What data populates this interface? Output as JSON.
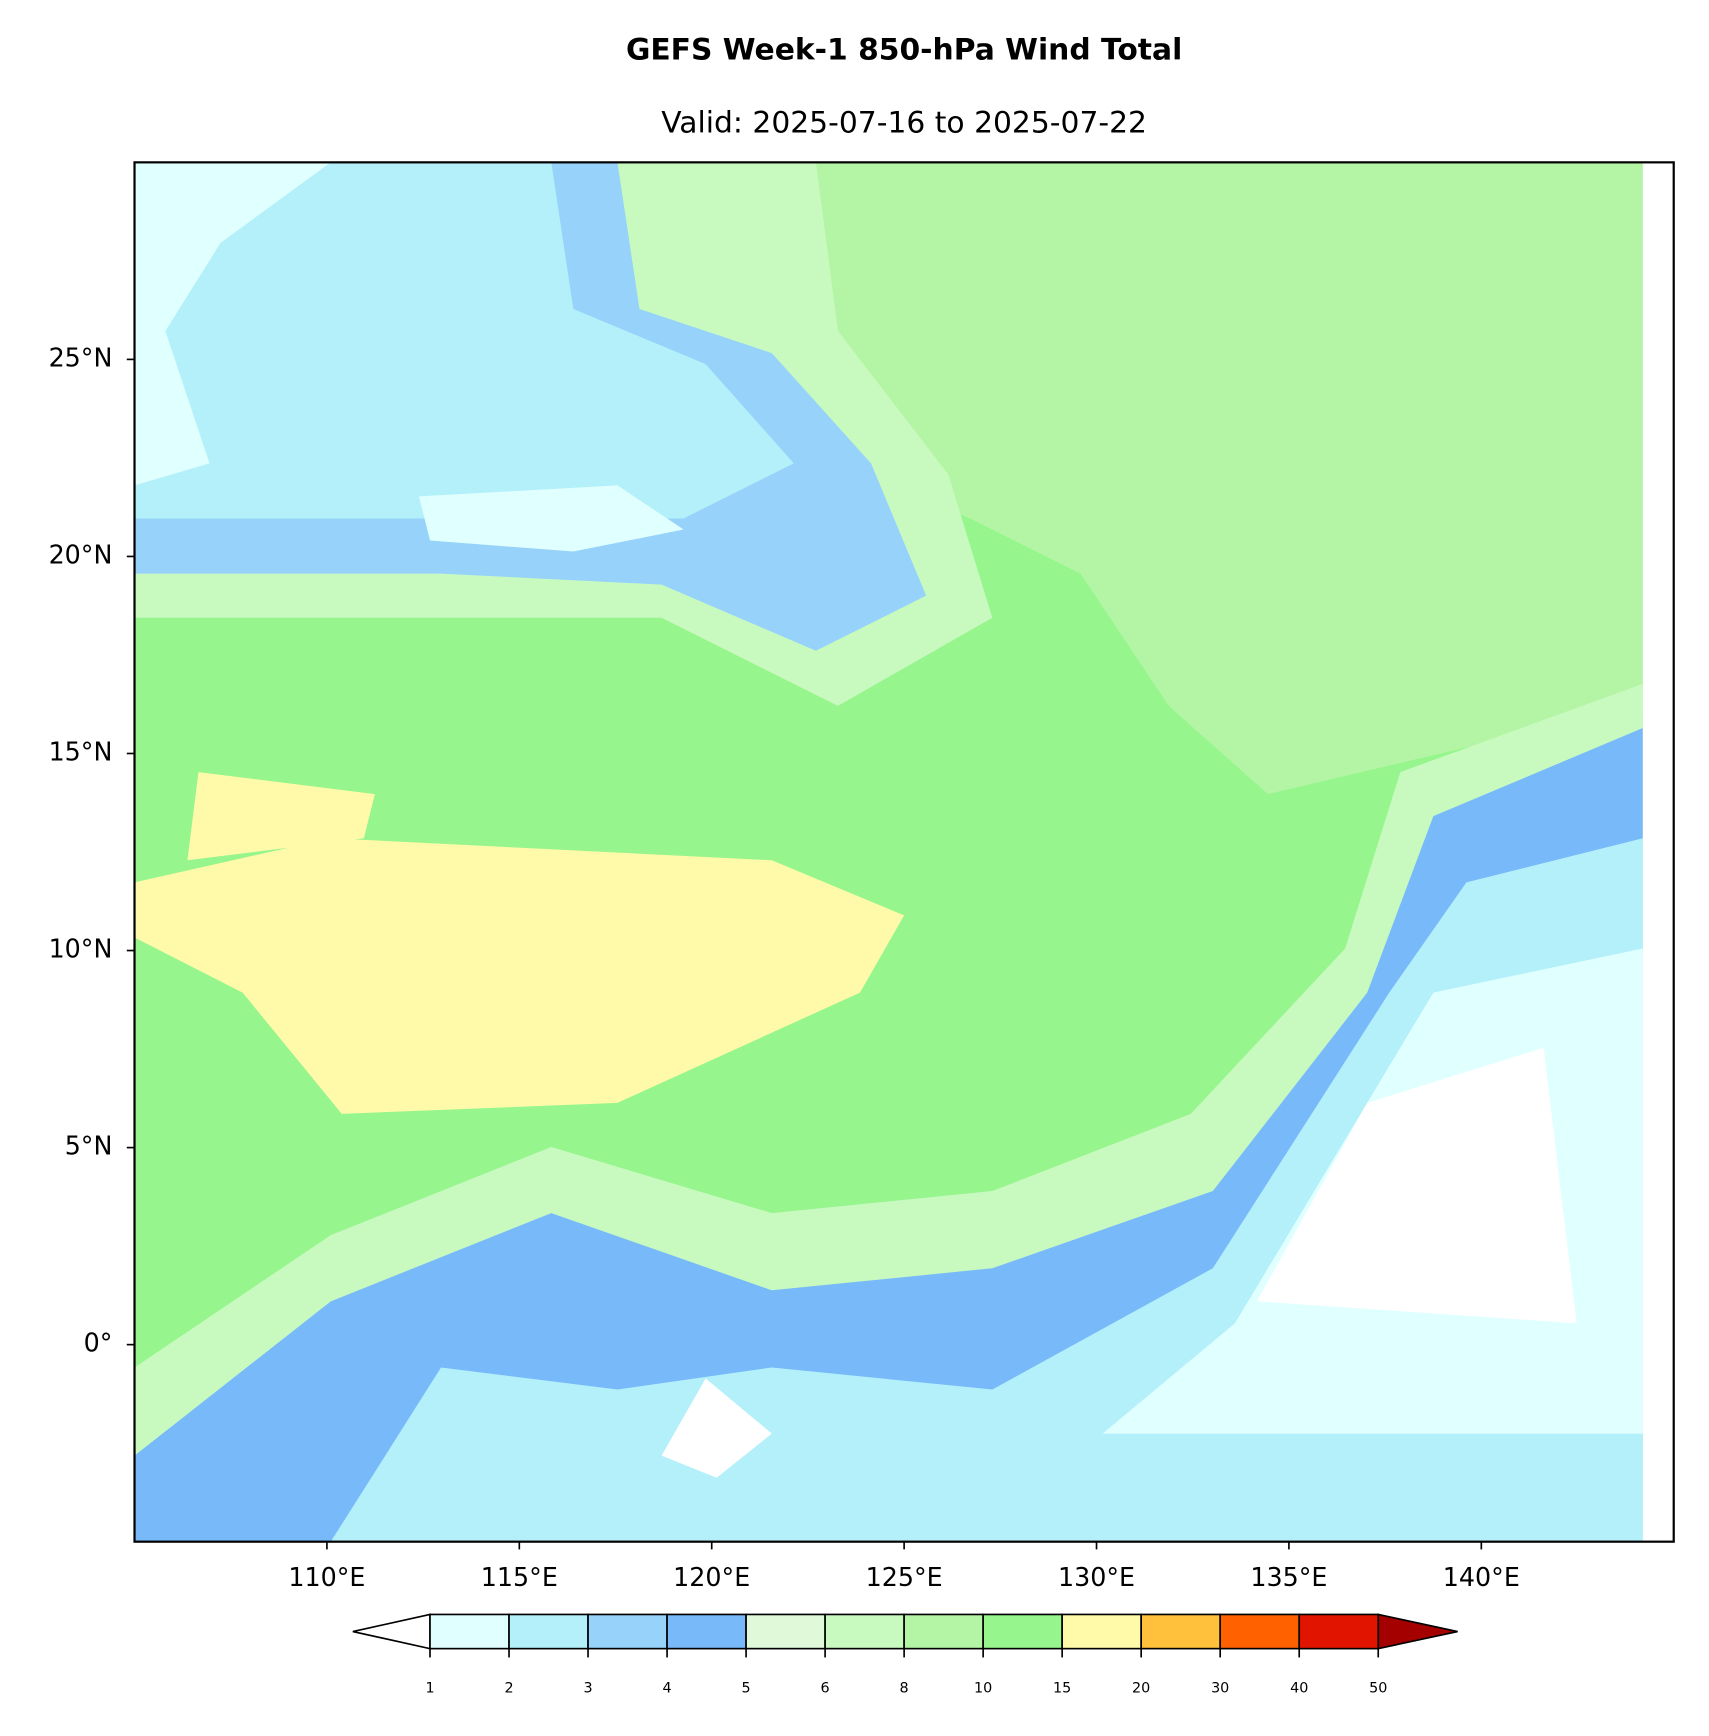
{
  "title": "GEFS Week-1 850-hPa Wind Total",
  "subtitle": "Valid: 2025-07-16 to 2025-07-22",
  "map": {
    "xlim": [
      105,
      145
    ],
    "ylim": [
      -5,
      30
    ],
    "xticks": [
      {
        "value": 110,
        "label": "110°E"
      },
      {
        "value": 115,
        "label": "115°E"
      },
      {
        "value": 120,
        "label": "120°E"
      },
      {
        "value": 125,
        "label": "125°E"
      },
      {
        "value": 130,
        "label": "130°E"
      },
      {
        "value": 135,
        "label": "135°E"
      },
      {
        "value": 140,
        "label": "140°E"
      }
    ],
    "yticks": [
      {
        "value": 0,
        "label": "0°"
      },
      {
        "value": 5,
        "label": "5°N"
      },
      {
        "value": 10,
        "label": "10°N"
      },
      {
        "value": 15,
        "label": "15°N"
      },
      {
        "value": 20,
        "label": "20°N"
      },
      {
        "value": 25,
        "label": "25°N"
      }
    ]
  },
  "colorbar": {
    "levels": [
      1,
      2,
      3,
      4,
      5,
      6,
      8,
      10,
      15,
      20,
      30,
      40,
      50
    ],
    "colors": [
      "#e0ffff",
      "#b4f0fa",
      "#96d2fa",
      "#78b9fa",
      "#e0fad9",
      "#c8fac0",
      "#b4f5a5",
      "#96f58c",
      "#fffaaa",
      "#ffc03c",
      "#ff6000",
      "#e11400"
    ],
    "under_color": "#ffffff",
    "over_color": "#a50000"
  }
}
